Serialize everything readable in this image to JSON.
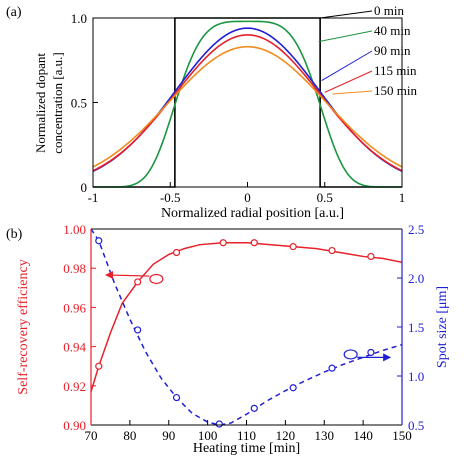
{
  "chart_data": [
    {
      "panel_label": "(a)",
      "type": "line",
      "xlabel": "Normalized radial position  [a.u.]",
      "ylabel": [
        "Normalized dopant",
        "concentration  [a.u.]"
      ],
      "xlim": [
        -1,
        1
      ],
      "ylim": [
        0,
        1
      ],
      "xticks": [
        -1,
        -0.5,
        0,
        0.5,
        1
      ],
      "xtick_labels": [
        "-1",
        "-0.5",
        "0",
        "0.5",
        "1"
      ],
      "yticks": [
        0,
        0.5,
        1
      ],
      "ytick_labels": [
        "0",
        "0.5",
        "1.0"
      ],
      "grid": false,
      "legend_position": "right, labels with leader lines",
      "series": [
        {
          "name": "0 min",
          "color": "#000000",
          "kind": "step",
          "peak": 1.0,
          "half_width": 0.47
        },
        {
          "name": "40 min",
          "color": "#1a9641",
          "kind": "profile",
          "peak": 0.98,
          "width": 0.47,
          "power": 4
        },
        {
          "name": "90 min",
          "color": "#1f1fd6",
          "kind": "profile",
          "peak": 0.94,
          "width": 0.55,
          "power": 2
        },
        {
          "name": "115 min",
          "color": "#e8202a",
          "kind": "profile",
          "peak": 0.9,
          "width": 0.56,
          "power": 2
        },
        {
          "name": "150 min",
          "color": "#f08c1e",
          "kind": "profile",
          "peak": 0.83,
          "width": 0.6,
          "power": 2
        }
      ]
    },
    {
      "panel_label": "(b)",
      "type": "line",
      "xlabel": "Heating time [min]",
      "xlim": [
        70,
        150
      ],
      "xticks": [
        70,
        80,
        90,
        100,
        110,
        120,
        130,
        140,
        150
      ],
      "y_left": {
        "label": "Self-recovery efficiency",
        "lim": [
          0.9,
          1.0
        ],
        "ticks": [
          "0.90",
          "0.92",
          "0.94",
          "0.96",
          "0.98",
          "1.00"
        ],
        "color": "#e8202a"
      },
      "y_right": {
        "label": "Spot size [μm]",
        "lim": [
          0.5,
          2.5
        ],
        "ticks": [
          "0.5",
          "1.0",
          "1.5",
          "2.0",
          "2.5"
        ],
        "color": "#1f1fd6"
      },
      "series": [
        {
          "name": "Self-recovery efficiency",
          "axis": "left",
          "color": "#e8202a",
          "style": "solid",
          "points": {
            "x": [
              72,
              82,
              92,
              104,
              112,
              122,
              132,
              142
            ],
            "y": [
              0.93,
              0.973,
              0.988,
              0.993,
              0.993,
              0.991,
              0.989,
              0.986
            ]
          },
          "fit": {
            "x": [
              70,
              72,
              75,
              78,
              82,
              86,
              90,
              94,
              98,
              104,
              110,
              116,
              122,
              128,
              134,
              140,
              145,
              150
            ],
            "y": [
              0.917,
              0.93,
              0.947,
              0.962,
              0.973,
              0.982,
              0.987,
              0.99,
              0.992,
              0.993,
              0.993,
              0.992,
              0.991,
              0.99,
              0.988,
              0.986,
              0.985,
              0.983
            ]
          }
        },
        {
          "name": "Spot size",
          "axis": "right",
          "color": "#1f1fd6",
          "style": "dashed",
          "points": {
            "x": [
              72,
              82,
              92,
              103,
              112,
              122,
              132,
              142
            ],
            "y": [
              2.38,
              1.47,
              0.78,
              0.51,
              0.67,
              0.88,
              1.08,
              1.24
            ]
          },
          "fit": {
            "x": [
              70,
              72,
              76,
              80,
              84,
              88,
              92,
              96,
              100,
              103,
              106,
              110,
              115,
              120,
              125,
              130,
              135,
              140,
              145,
              150
            ],
            "y": [
              2.5,
              2.38,
              1.95,
              1.58,
              1.25,
              0.98,
              0.78,
              0.62,
              0.53,
              0.5,
              0.52,
              0.61,
              0.74,
              0.85,
              0.95,
              1.04,
              1.12,
              1.19,
              1.26,
              1.32
            ]
          }
        }
      ]
    }
  ]
}
